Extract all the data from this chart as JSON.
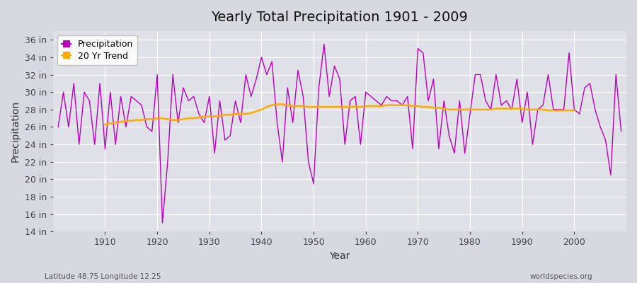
{
  "title": "Yearly Total Precipitation 1901 - 2009",
  "xlabel": "Year",
  "ylabel": "Precipitation",
  "subtitle_left": "Latitude 48.75 Longitude 12.25",
  "subtitle_right": "worldspecies.org",
  "fig_bg_color": "#d8d8e0",
  "plot_bg_color": "#e0e0e8",
  "precip_color": "#bb00bb",
  "trend_color": "#ffaa00",
  "ylim": [
    14,
    37
  ],
  "xlim": [
    1900,
    2010
  ],
  "years": [
    1901,
    1902,
    1903,
    1904,
    1905,
    1906,
    1907,
    1908,
    1909,
    1910,
    1911,
    1912,
    1913,
    1914,
    1915,
    1916,
    1917,
    1918,
    1919,
    1920,
    1921,
    1922,
    1923,
    1924,
    1925,
    1926,
    1927,
    1928,
    1929,
    1930,
    1931,
    1932,
    1933,
    1934,
    1935,
    1936,
    1937,
    1938,
    1939,
    1940,
    1941,
    1942,
    1943,
    1944,
    1945,
    1946,
    1947,
    1948,
    1949,
    1950,
    1951,
    1952,
    1953,
    1954,
    1955,
    1956,
    1957,
    1958,
    1959,
    1960,
    1961,
    1962,
    1963,
    1964,
    1965,
    1966,
    1967,
    1968,
    1969,
    1970,
    1971,
    1972,
    1973,
    1974,
    1975,
    1976,
    1977,
    1978,
    1979,
    1980,
    1981,
    1982,
    1983,
    1984,
    1985,
    1986,
    1987,
    1988,
    1989,
    1990,
    1991,
    1992,
    1993,
    1994,
    1995,
    1996,
    1997,
    1998,
    1999,
    2000,
    2001,
    2002,
    2003,
    2004,
    2005,
    2006,
    2007,
    2008,
    2009
  ],
  "precip": [
    26.0,
    30.0,
    26.0,
    31.0,
    24.0,
    30.0,
    29.0,
    24.0,
    31.0,
    23.5,
    30.0,
    24.0,
    29.5,
    26.0,
    29.5,
    29.0,
    28.5,
    26.0,
    25.5,
    32.0,
    15.0,
    22.0,
    32.0,
    26.5,
    30.5,
    29.0,
    29.5,
    27.5,
    26.5,
    29.5,
    23.0,
    29.0,
    24.5,
    25.0,
    29.0,
    26.5,
    32.0,
    29.5,
    31.5,
    34.0,
    32.0,
    33.5,
    26.5,
    22.0,
    30.5,
    26.5,
    32.5,
    29.5,
    22.0,
    19.5,
    30.5,
    35.5,
    29.5,
    33.0,
    31.5,
    24.0,
    29.0,
    29.5,
    24.0,
    30.0,
    29.5,
    29.0,
    28.5,
    29.5,
    29.0,
    29.0,
    28.5,
    29.5,
    23.5,
    35.0,
    34.5,
    29.0,
    31.5,
    23.5,
    29.0,
    25.0,
    23.0,
    29.0,
    23.0,
    27.5,
    32.0,
    32.0,
    29.0,
    28.0,
    32.0,
    28.5,
    29.0,
    28.0,
    31.5,
    26.5,
    30.0,
    24.0,
    28.0,
    28.5,
    32.0,
    28.0,
    28.0,
    28.0,
    34.5,
    28.0,
    27.5,
    30.5,
    31.0,
    28.0,
    26.0,
    24.5,
    20.5,
    32.0,
    25.5
  ],
  "trend": [
    null,
    null,
    null,
    null,
    null,
    null,
    null,
    null,
    null,
    26.3,
    26.4,
    26.5,
    26.6,
    26.7,
    26.7,
    26.8,
    26.8,
    26.9,
    26.9,
    27.0,
    27.0,
    26.9,
    26.8,
    26.8,
    26.9,
    27.0,
    27.0,
    27.1,
    27.2,
    27.2,
    27.2,
    27.3,
    27.4,
    27.4,
    27.5,
    27.5,
    27.5,
    27.6,
    27.8,
    28.0,
    28.3,
    28.5,
    28.6,
    28.6,
    28.5,
    28.4,
    28.4,
    28.4,
    28.3,
    28.3,
    28.3,
    28.3,
    28.3,
    28.3,
    28.3,
    28.3,
    28.3,
    28.3,
    28.3,
    28.4,
    28.4,
    28.4,
    28.4,
    28.5,
    28.5,
    28.5,
    28.5,
    28.5,
    28.4,
    28.4,
    28.3,
    28.3,
    28.2,
    28.2,
    28.1,
    28.0,
    28.0,
    28.0,
    28.0,
    28.0,
    28.0,
    28.0,
    28.0,
    28.0,
    28.1,
    28.1,
    28.1,
    28.1,
    28.1,
    28.1,
    28.0,
    28.0,
    28.0,
    28.0,
    27.9,
    27.9,
    27.9,
    27.9,
    27.9,
    27.9,
    null,
    null,
    null,
    null,
    null,
    null,
    null,
    null,
    null
  ]
}
